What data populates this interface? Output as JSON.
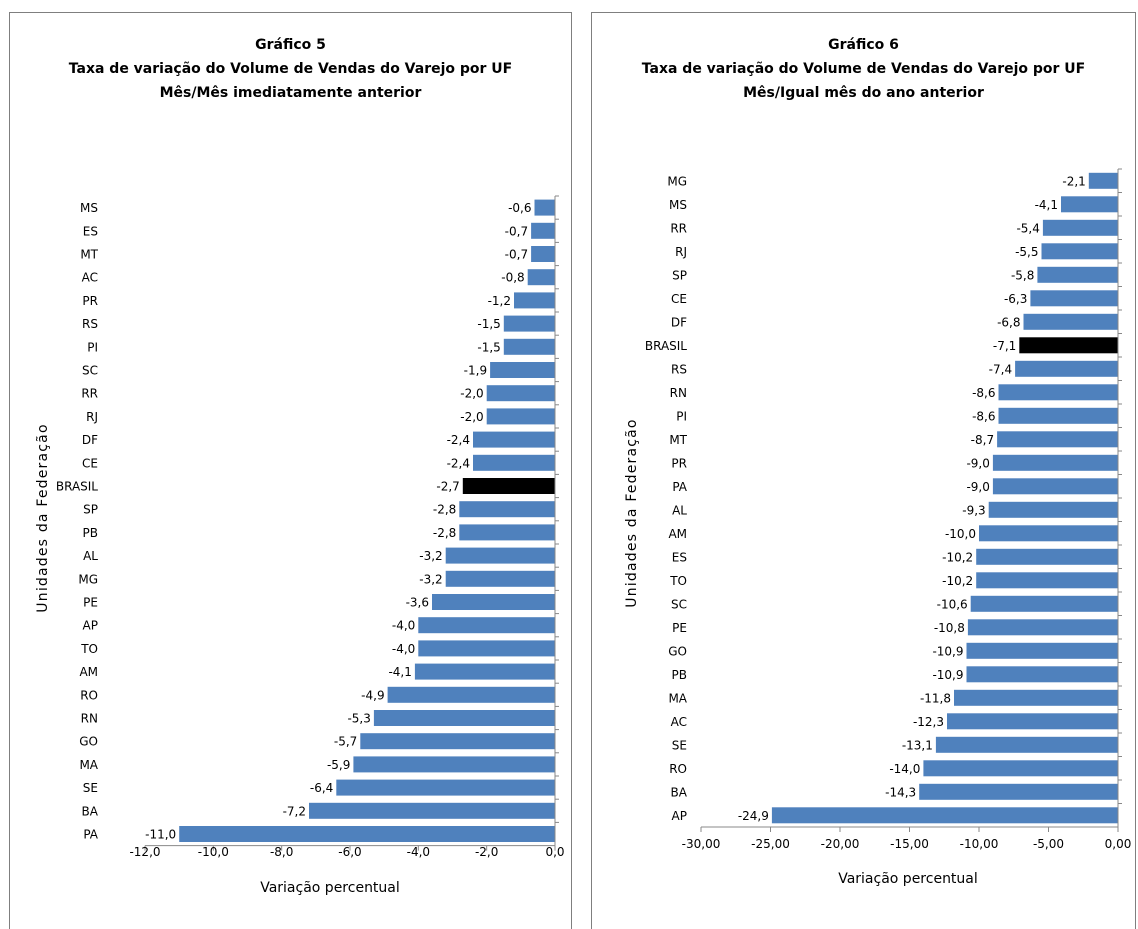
{
  "chart_data": [
    {
      "type": "bar",
      "orientation": "horizontal",
      "title": "Gráfico 5",
      "subtitle": [
        "Taxa de variação do Volume de Vendas do Varejo por UF",
        "Mês/Mês imediatamente anterior"
      ],
      "xlabel": "Variação percentual",
      "ylabel": "Unidades da Federação",
      "xlim": [
        -12.0,
        0.0
      ],
      "x_ticks": [
        "-12,0",
        "-10,0",
        "-8,0",
        "-6,0",
        "-4,0",
        "-2,0",
        "0,0"
      ],
      "grid": false,
      "legend": false,
      "colors": {
        "bar": "#4f81bd",
        "highlight": "#000000"
      },
      "highlight_category": "BRASIL",
      "categories": [
        "MS",
        "ES",
        "MT",
        "AC",
        "PR",
        "RS",
        "PI",
        "SC",
        "RR",
        "RJ",
        "DF",
        "CE",
        "BRASIL",
        "SP",
        "PB",
        "AL",
        "MG",
        "PE",
        "AP",
        "TO",
        "AM",
        "RO",
        "RN",
        "GO",
        "MA",
        "SE",
        "BA",
        "PA"
      ],
      "values": [
        -0.6,
        -0.7,
        -0.7,
        -0.8,
        -1.2,
        -1.5,
        -1.5,
        -1.9,
        -2.0,
        -2.0,
        -2.4,
        -2.4,
        -2.7,
        -2.8,
        -2.8,
        -3.2,
        -3.2,
        -3.6,
        -4.0,
        -4.0,
        -4.1,
        -4.9,
        -5.3,
        -5.7,
        -5.9,
        -6.4,
        -7.2,
        -11.0
      ],
      "value_labels": [
        "-0,6",
        "-0,7",
        "-0,7",
        "-0,8",
        "-1,2",
        "-1,5",
        "-1,5",
        "-1,9",
        "-2,0",
        "-2,0",
        "-2,4",
        "-2,4",
        "-2,7",
        "-2,8",
        "-2,8",
        "-3,2",
        "-3,2",
        "-3,6",
        "-4,0",
        "-4,0",
        "-4,1",
        "-4,9",
        "-5,3",
        "-5,7",
        "-5,9",
        "-6,4",
        "-7,2",
        "-11,0"
      ]
    },
    {
      "type": "bar",
      "orientation": "horizontal",
      "title": "Gráfico 6",
      "subtitle": [
        "Taxa de variação do Volume de Vendas do Varejo por UF",
        "Mês/Igual mês do ano anterior"
      ],
      "xlabel": "Variação percentual",
      "ylabel": "Unidades da Federação",
      "xlim": [
        -30.0,
        0.0
      ],
      "x_ticks": [
        "-30,00",
        "-25,00",
        "-20,00",
        "-15,00",
        "-10,00",
        "-5,00",
        "0,00"
      ],
      "grid": false,
      "legend": false,
      "colors": {
        "bar": "#4f81bd",
        "highlight": "#000000"
      },
      "highlight_category": "BRASIL",
      "categories": [
        "MG",
        "MS",
        "RR",
        "RJ",
        "SP",
        "CE",
        "DF",
        "BRASIL",
        "RS",
        "RN",
        "PI",
        "MT",
        "PR",
        "PA",
        "AL",
        "AM",
        "ES",
        "TO",
        "SC",
        "PE",
        "GO",
        "PB",
        "MA",
        "AC",
        "SE",
        "RO",
        "BA",
        "AP"
      ],
      "values": [
        -2.1,
        -4.1,
        -5.4,
        -5.5,
        -5.8,
        -6.3,
        -6.8,
        -7.1,
        -7.4,
        -8.6,
        -8.6,
        -8.7,
        -9.0,
        -9.0,
        -9.3,
        -10.0,
        -10.2,
        -10.2,
        -10.6,
        -10.8,
        -10.9,
        -10.9,
        -11.8,
        -12.3,
        -13.1,
        -14.0,
        -14.3,
        -24.9
      ],
      "value_labels": [
        "-2,1",
        "-4,1",
        "-5,4",
        "-5,5",
        "-5,8",
        "-6,3",
        "-6,8",
        "-7,1",
        "-7,4",
        "-8,6",
        "-8,6",
        "-8,7",
        "-9,0",
        "-9,0",
        "-9,3",
        "-10,0",
        "-10,2",
        "-10,2",
        "-10,6",
        "-10,8",
        "-10,9",
        "-10,9",
        "-11,8",
        "-12,3",
        "-13,1",
        "-14,0",
        "-14,3",
        "-24,9"
      ]
    }
  ]
}
